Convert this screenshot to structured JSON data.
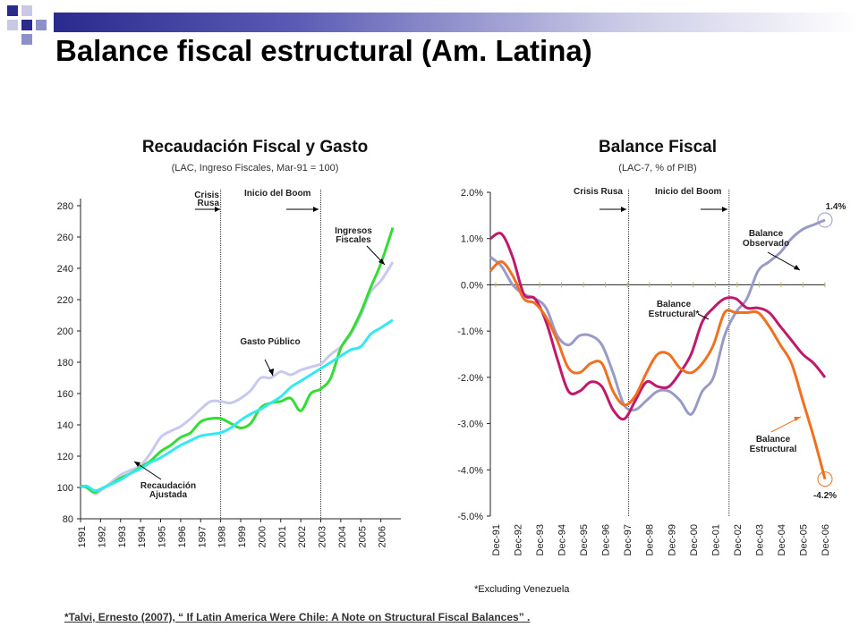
{
  "slide": {
    "title": "Balance fiscal estructural (Am. Latina)",
    "footnote": "*Talvi, Ernesto (2007), “ If Latin America Were Chile: A Note on Structural Fiscal Balances” .",
    "excluding_note": "*Excluding Venezuela",
    "colors": {
      "title_bar": "#2a2a8f",
      "squares": [
        "#2a2a8f",
        "#8f8fc9",
        "#c9c9e6"
      ]
    }
  },
  "chart_data": [
    {
      "type": "line",
      "title": "Recaudación Fiscal y Gasto",
      "subtitle": "(LAC, Ingreso Fiscales, Mar-91 = 100)",
      "ylim": [
        80,
        280
      ],
      "yticks": [
        80,
        100,
        120,
        140,
        160,
        180,
        200,
        220,
        240,
        260,
        280
      ],
      "xlim": [
        1991,
        2007
      ],
      "xticks": [
        "1991",
        "1992",
        "1993",
        "1994",
        "1995",
        "1996",
        "1997",
        "1998",
        "1999",
        "2000",
        "2001",
        "2002",
        "2003",
        "2004",
        "2005",
        "2006"
      ],
      "vlines": [
        {
          "x": 1998.0,
          "label": "Crisis Rusa"
        },
        {
          "x": 2003.0,
          "label": "Inicio del Boom"
        }
      ],
      "series": [
        {
          "name": "Gasto Público",
          "color": "#c8c8f0",
          "x": [
            1991,
            1991.3,
            1991.7,
            1992,
            1992.5,
            1993,
            1993.5,
            1994,
            1994.5,
            1995,
            1995.5,
            1996,
            1996.5,
            1997,
            1997.5,
            1998,
            1998.5,
            1999,
            1999.5,
            2000,
            2000.5,
            2001,
            2001.5,
            2002,
            2002.5,
            2003,
            2003.5,
            2004,
            2004.5,
            2005,
            2005.5,
            2006,
            2006.6
          ],
          "y": [
            101,
            100,
            96,
            98,
            103,
            108,
            111,
            114,
            122,
            132,
            136,
            139,
            144,
            150,
            155,
            155,
            154,
            157,
            162,
            170,
            170,
            174,
            172,
            175,
            177,
            179,
            185,
            190,
            198,
            210,
            225,
            232,
            244
          ]
        },
        {
          "name": "Ingresos Fiscales",
          "color": "#33dd33",
          "x": [
            1991,
            1991.3,
            1991.7,
            1992,
            1992.5,
            1993,
            1993.5,
            1994,
            1994.5,
            1995,
            1995.5,
            1996,
            1996.5,
            1997,
            1997.5,
            1998,
            1998.5,
            1999,
            1999.5,
            2000,
            2000.5,
            2001,
            2001.5,
            2002,
            2002.5,
            2003,
            2003.5,
            2004,
            2004.5,
            2005,
            2005.5,
            2006,
            2006.6
          ],
          "y": [
            101,
            100,
            97,
            99,
            102,
            106,
            109,
            113,
            117,
            123,
            127,
            132,
            135,
            142,
            144,
            144,
            141,
            138,
            141,
            151,
            154,
            155,
            157,
            149,
            160,
            163,
            170,
            189,
            199,
            212,
            228,
            243,
            266
          ]
        },
        {
          "name": "Recaudación Ajustada",
          "color": "#33e8f0",
          "x": [
            1991,
            1991.3,
            1991.7,
            1992,
            1992.5,
            1993,
            1993.5,
            1994,
            1994.5,
            1995,
            1995.5,
            1996,
            1996.5,
            1997,
            1997.5,
            1998,
            1998.5,
            1999,
            1999.5,
            2000,
            2000.5,
            2001,
            2001.5,
            2002,
            2002.5,
            2003,
            2003.5,
            2004,
            2004.5,
            2005,
            2005.5,
            2006,
            2006.6
          ],
          "y": [
            100,
            101,
            98,
            99,
            102,
            105,
            109,
            112,
            116,
            119,
            123,
            127,
            130,
            133,
            134,
            135,
            138,
            143,
            147,
            150,
            154,
            158,
            164,
            168,
            172,
            176,
            180,
            184,
            188,
            190,
            198,
            202,
            207
          ]
        }
      ],
      "annotations": [
        {
          "text": "Ingresos Fiscales",
          "target": "Ingresos Fiscales"
        },
        {
          "text": "Gasto Público",
          "target": "Gasto Público"
        },
        {
          "text": "Recaudación Ajustada",
          "target": "Recaudación Ajustada"
        }
      ]
    },
    {
      "type": "line",
      "title": "Balance Fiscal",
      "subtitle": "(LAC-7, % of PIB)",
      "ylim": [
        -5.0,
        2.0
      ],
      "yticks": [
        "-5.0%",
        "-4.0%",
        "-3.0%",
        "-2.0%",
        "-1.0%",
        "0.0%",
        "1.0%",
        "2.0%"
      ],
      "xticks": [
        "Dec-91",
        "Dec-92",
        "Dec-93",
        "Dec-94",
        "Dec-95",
        "Dec-96",
        "Dec-97",
        "Dec-98",
        "Dec-99",
        "Dec-00",
        "Dec-01",
        "Dec-02",
        "Dec-03",
        "Dec-04",
        "Dec-05",
        "Dec-06"
      ],
      "xlim": [
        0,
        15
      ],
      "vlines": [
        {
          "x": 6.2,
          "label": "Crisis Rusa"
        },
        {
          "x": 10.7,
          "label": "Inicio del Boom"
        }
      ],
      "series": [
        {
          "name": "Balance Observado",
          "color": "#9a9ac8",
          "x": [
            0,
            0.5,
            1,
            1.5,
            2,
            2.5,
            3,
            3.5,
            4,
            4.5,
            5,
            5.5,
            6,
            6.5,
            7,
            7.5,
            8,
            8.5,
            9,
            9.5,
            10,
            10.5,
            11,
            11.5,
            12,
            12.5,
            13,
            13.5,
            14,
            14.5,
            15
          ],
          "y": [
            0.6,
            0.4,
            0.0,
            -0.2,
            -0.3,
            -0.5,
            -1.1,
            -1.3,
            -1.1,
            -1.1,
            -1.3,
            -1.9,
            -2.6,
            -2.7,
            -2.5,
            -2.3,
            -2.3,
            -2.5,
            -2.8,
            -2.3,
            -2.0,
            -1.1,
            -0.6,
            -0.3,
            0.3,
            0.5,
            0.7,
            1.0,
            1.2,
            1.3,
            1.4
          ]
        },
        {
          "name": "Balance Estructural*",
          "color": "#c0186a",
          "x": [
            0,
            0.5,
            1,
            1.5,
            2,
            2.5,
            3,
            3.5,
            4,
            4.5,
            5,
            5.5,
            6,
            6.5,
            7,
            7.5,
            8,
            8.5,
            9,
            9.5,
            10,
            10.5,
            11,
            11.5,
            12,
            12.5,
            13,
            13.5,
            14,
            14.5,
            15
          ],
          "y": [
            1.0,
            1.1,
            0.6,
            -0.2,
            -0.3,
            -0.8,
            -1.6,
            -2.3,
            -2.3,
            -2.1,
            -2.2,
            -2.7,
            -2.9,
            -2.5,
            -2.1,
            -2.2,
            -2.2,
            -1.9,
            -1.5,
            -0.8,
            -0.5,
            -0.3,
            -0.3,
            -0.5,
            -0.5,
            -0.6,
            -0.9,
            -1.2,
            -1.5,
            -1.7,
            -2.0
          ]
        },
        {
          "name": "Balance Estructural",
          "color": "#f07020",
          "x": [
            0,
            0.5,
            1,
            1.5,
            2,
            2.5,
            3,
            3.5,
            4,
            4.5,
            5,
            5.5,
            6,
            6.5,
            7,
            7.5,
            8,
            8.5,
            9,
            9.5,
            10,
            10.5,
            11,
            11.5,
            12,
            12.5,
            13,
            13.5,
            14,
            14.5,
            15
          ],
          "y": [
            0.3,
            0.5,
            0.2,
            -0.3,
            -0.4,
            -0.7,
            -1.2,
            -1.8,
            -1.9,
            -1.7,
            -1.7,
            -2.3,
            -2.6,
            -2.4,
            -1.9,
            -1.5,
            -1.5,
            -1.8,
            -1.9,
            -1.7,
            -1.3,
            -0.6,
            -0.6,
            -0.6,
            -0.6,
            -0.9,
            -1.3,
            -1.7,
            -2.5,
            -3.3,
            -4.2
          ]
        }
      ],
      "end_labels": [
        {
          "text": "1.4%",
          "series": "Balance Observado"
        },
        {
          "text": "-4.2%",
          "series": "Balance Estructural"
        }
      ],
      "annotations": [
        {
          "text": "Balance Observado",
          "target": "Balance Observado"
        },
        {
          "text": "Balance Estructural*",
          "target": "Balance Estructural*"
        },
        {
          "text": "Balance Estructural",
          "target": "Balance Estructural"
        }
      ]
    }
  ]
}
